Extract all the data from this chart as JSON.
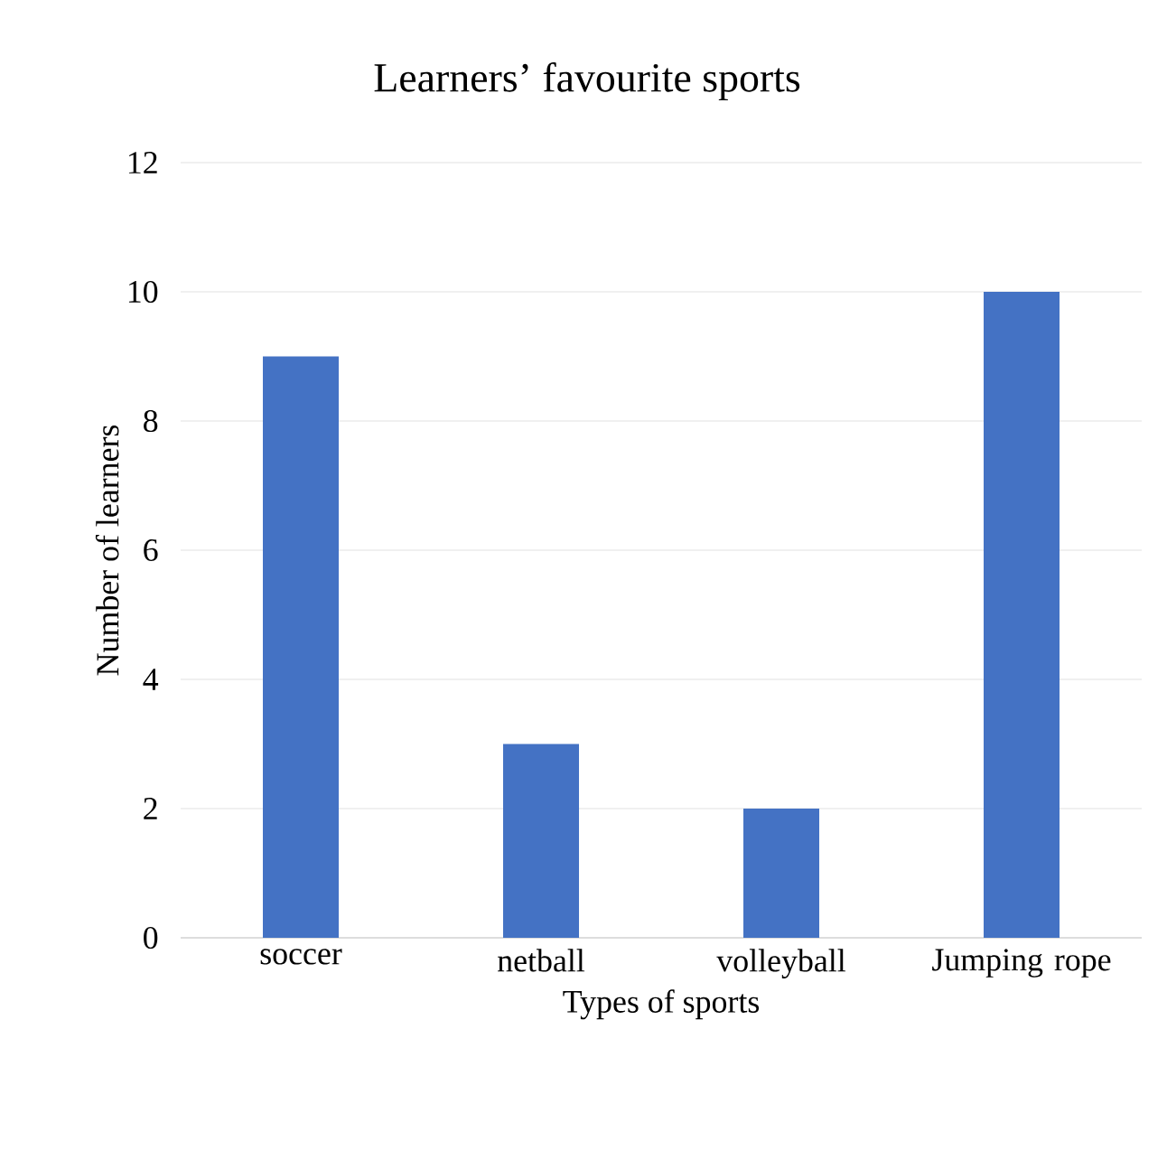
{
  "chart_data": {
    "type": "bar",
    "title": "Learners’ favourite sports",
    "xlabel": "Types of sports",
    "ylabel": "Number of learners",
    "categories": [
      "soccer",
      "netball",
      "volleyball",
      "Jumping rope"
    ],
    "values": [
      9,
      3,
      2,
      10
    ],
    "color": "#4472c4",
    "ylim": [
      0,
      12
    ],
    "yticks": [
      0,
      2,
      4,
      6,
      8,
      10,
      12
    ],
    "grid": "y"
  }
}
